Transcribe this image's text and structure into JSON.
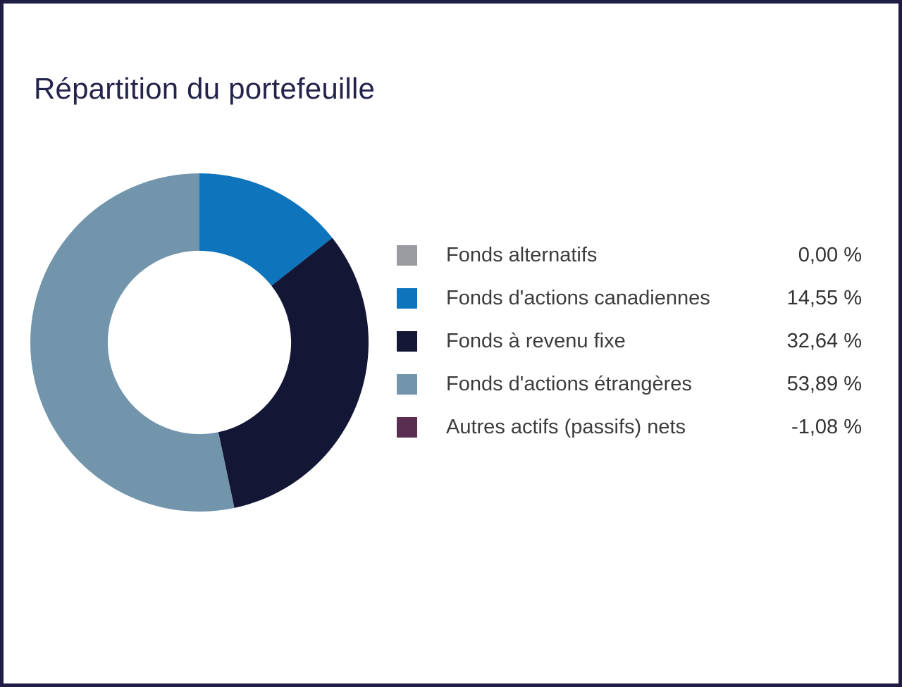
{
  "page": {
    "background_color": "#ffffff",
    "frame_color": "#201d45",
    "title_color": "#24234c",
    "text_color": "#3c3c3c"
  },
  "chart_data": {
    "type": "pie",
    "variant": "donut",
    "title": "Répartition du portefeuille",
    "legend_position": "right",
    "donut": {
      "start_angle_deg": 0,
      "direction": "clockwise",
      "inner_radius_ratio": 0.542,
      "note": "only positive values drawn, normalized to 360 degrees"
    },
    "segments": [
      {
        "label": "Fonds alternatifs",
        "value": 0.0,
        "value_label": "0,00 %",
        "color": "#9a9b9f"
      },
      {
        "label": "Fonds d'actions canadiennes",
        "value": 14.55,
        "value_label": "14,55 %",
        "color": "#0e74bc"
      },
      {
        "label": "Fonds à revenu fixe",
        "value": 32.64,
        "value_label": "32,64 %",
        "color": "#141636"
      },
      {
        "label": "Fonds d'actions étrangères",
        "value": 53.89,
        "value_label": "53,89 %",
        "color": "#7295ac"
      },
      {
        "label": "Autres actifs (passifs) nets",
        "value": -1.08,
        "value_label": "-1,08 %",
        "color": "#5a2e50"
      }
    ]
  }
}
